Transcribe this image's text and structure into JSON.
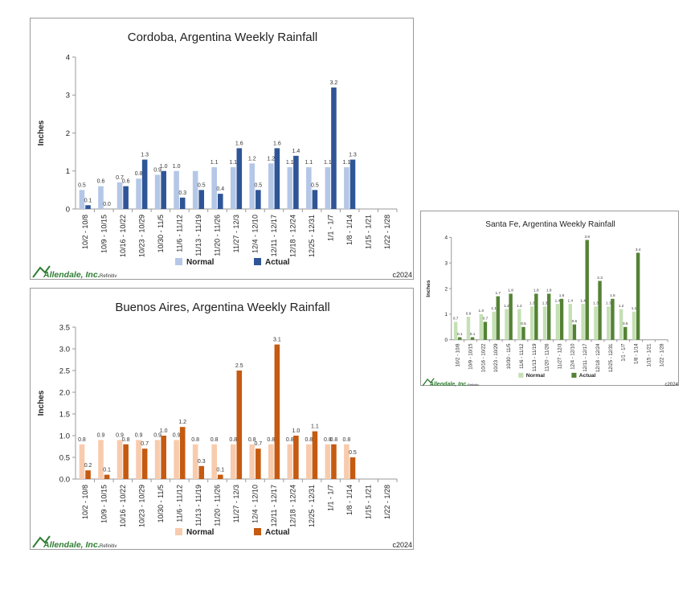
{
  "branding": {
    "logo": "Allendale, Inc.",
    "source": "Refinitiv",
    "copyright": "c2024"
  },
  "chart_data": [
    {
      "type": "bar",
      "title": "Cordoba, Argentina Weekly Rainfall",
      "ylabel": "Inches",
      "xlabel": "",
      "ylim": [
        0,
        4
      ],
      "yticks": [
        0,
        1,
        2,
        3,
        4
      ],
      "ytick_labels": [
        "0",
        "1",
        "2",
        "3",
        "4"
      ],
      "grid": false,
      "legend": "bottom",
      "categories": [
        "10/2 - 10/8",
        "10/9 - 10/15",
        "10/16 - 10/22",
        "10/23 - 10/29",
        "10/30 - 11/5",
        "11/6 - 11/12",
        "11/13 - 11/19",
        "11/20 - 11/26",
        "11/27 - 12/3",
        "12/4 - 12/10",
        "12/11 - 12/17",
        "12/18 - 12/24",
        "12/25 - 12/31",
        "1/1 - 1/7",
        "1/8 - 1/14",
        "1/15 - 1/21",
        "1/22 - 1/28"
      ],
      "series": [
        {
          "name": "Normal",
          "color": "#b4c7e7",
          "values": [
            0.5,
            0.6,
            0.7,
            0.8,
            0.9,
            1.0,
            1.0,
            1.1,
            1.1,
            1.2,
            1.2,
            1.1,
            1.1,
            1.1,
            1.1,
            null,
            null
          ],
          "labels": [
            "0.5",
            "0.6",
            "0.7",
            "0.8",
            "0.9",
            "1.0",
            "",
            "1.1",
            "1.1",
            "1.2",
            "1.2",
            "1.1",
            "1.1",
            "1.1",
            "1.1",
            "",
            ""
          ]
        },
        {
          "name": "Actual",
          "color": "#2f5597",
          "values": [
            0.1,
            0.0,
            0.6,
            1.3,
            1.0,
            0.3,
            0.5,
            0.4,
            1.6,
            0.5,
            1.6,
            1.4,
            0.5,
            3.2,
            1.3,
            null,
            null
          ],
          "labels": [
            "0.1",
            "0.0",
            "0.6",
            "1.3",
            "1.0",
            "0.3",
            "0.5",
            "0.4",
            "1.6",
            "0.5",
            "1.6",
            "1.4",
            "0.5",
            "3.2",
            "1.3",
            "",
            ""
          ]
        }
      ]
    },
    {
      "type": "bar",
      "title": "Buenos Aires, Argentina Weekly Rainfall",
      "ylabel": "Inches",
      "xlabel": "",
      "ylim": [
        0,
        3.5
      ],
      "yticks": [
        0,
        0.5,
        1.0,
        1.5,
        2.0,
        2.5,
        3.0,
        3.5
      ],
      "ytick_labels": [
        "0.0",
        "0.5",
        "1.0",
        "1.5",
        "2.0",
        "2.5",
        "3.0",
        "3.5"
      ],
      "grid": false,
      "legend": "bottom",
      "categories": [
        "10/2 - 10/8",
        "10/9 - 10/15",
        "10/16 - 10/22",
        "10/23 - 10/29",
        "10/30 - 11/5",
        "11/6 - 11/12",
        "11/13 - 11/19",
        "11/20 - 11/26",
        "11/27 - 12/3",
        "12/4 - 12/10",
        "12/11 - 12/17",
        "12/18 - 12/24",
        "12/25 - 12/31",
        "1/1 - 1/7",
        "1/8 - 1/14",
        "1/15 - 1/21",
        "1/22 - 1/28"
      ],
      "series": [
        {
          "name": "Normal",
          "color": "#f8cbad",
          "values": [
            0.8,
            0.9,
            0.9,
            0.9,
            0.9,
            0.9,
            0.8,
            0.8,
            0.8,
            0.8,
            0.8,
            0.8,
            0.8,
            0.8,
            0.8,
            null,
            null
          ],
          "labels": [
            "0.8",
            "0.9",
            "0.9",
            "0.9",
            "0.9",
            "0.9",
            "0.8",
            "0.8",
            "0.8",
            "0.8",
            "0.8",
            "0.8",
            "0.8",
            "0.8",
            "0.8",
            "",
            ""
          ]
        },
        {
          "name": "Actual",
          "color": "#c55a11",
          "values": [
            0.2,
            0.1,
            0.8,
            0.7,
            1.0,
            1.2,
            0.3,
            0.1,
            2.5,
            0.7,
            3.1,
            1.0,
            1.1,
            0.8,
            0.5,
            null,
            null
          ],
          "labels": [
            "0.2",
            "0.1",
            "0.8",
            "0.7",
            "1.0",
            "1.2",
            "0.3",
            "0.1",
            "2.5",
            "0.7",
            "3.1",
            "1.0",
            "1.1",
            "0.8",
            "0.5",
            "",
            ""
          ]
        }
      ]
    },
    {
      "type": "bar",
      "title": "Santa Fe, Argentina Weekly Rainfall",
      "ylabel": "Inches",
      "xlabel": "",
      "ylim": [
        0,
        4
      ],
      "yticks": [
        0,
        1,
        2,
        3,
        4
      ],
      "ytick_labels": [
        "0",
        "1",
        "2",
        "3",
        "4"
      ],
      "grid": false,
      "legend": "bottom",
      "categories": [
        "10/2 - 10/8",
        "10/9 - 10/15",
        "10/16 - 10/22",
        "10/23 - 10/29",
        "10/30 - 11/5",
        "11/6 - 11/12",
        "11/13 - 11/19",
        "11/20 - 11/26",
        "11/27 - 12/3",
        "12/4 - 12/10",
        "12/11 - 12/17",
        "12/18 - 12/24",
        "12/25 - 12/31",
        "1/1 - 1/7",
        "1/8 - 1/14",
        "1/15 - 1/21",
        "1/22 - 1/28"
      ],
      "series": [
        {
          "name": "Normal",
          "color": "#c5e0b4",
          "values": [
            0.7,
            0.9,
            1.0,
            1.1,
            1.2,
            1.2,
            1.3,
            1.3,
            1.4,
            1.4,
            1.4,
            1.3,
            1.3,
            1.2,
            1.1,
            null,
            null
          ],
          "labels": [
            "0.7",
            "0.9",
            "1.0",
            "1.1",
            "1.2",
            "1.2",
            "1.3",
            "1.3",
            "1.4",
            "1.4",
            "1.4",
            "1.3",
            "1.3",
            "1.2",
            "1.1",
            "",
            ""
          ]
        },
        {
          "name": "Actual",
          "color": "#548235",
          "values": [
            0.1,
            0.1,
            0.7,
            1.7,
            1.8,
            0.5,
            1.8,
            1.8,
            1.6,
            0.6,
            3.9,
            2.3,
            1.6,
            0.5,
            3.4,
            null,
            null
          ],
          "labels": [
            "0.1",
            "0.1",
            "0.7",
            "1.7",
            "1.8",
            "0.5",
            "1.8",
            "1.8",
            "1.6",
            "0.6",
            "3.9",
            "2.3",
            "1.6",
            "0.5",
            "3.4",
            "",
            ""
          ]
        }
      ]
    }
  ]
}
